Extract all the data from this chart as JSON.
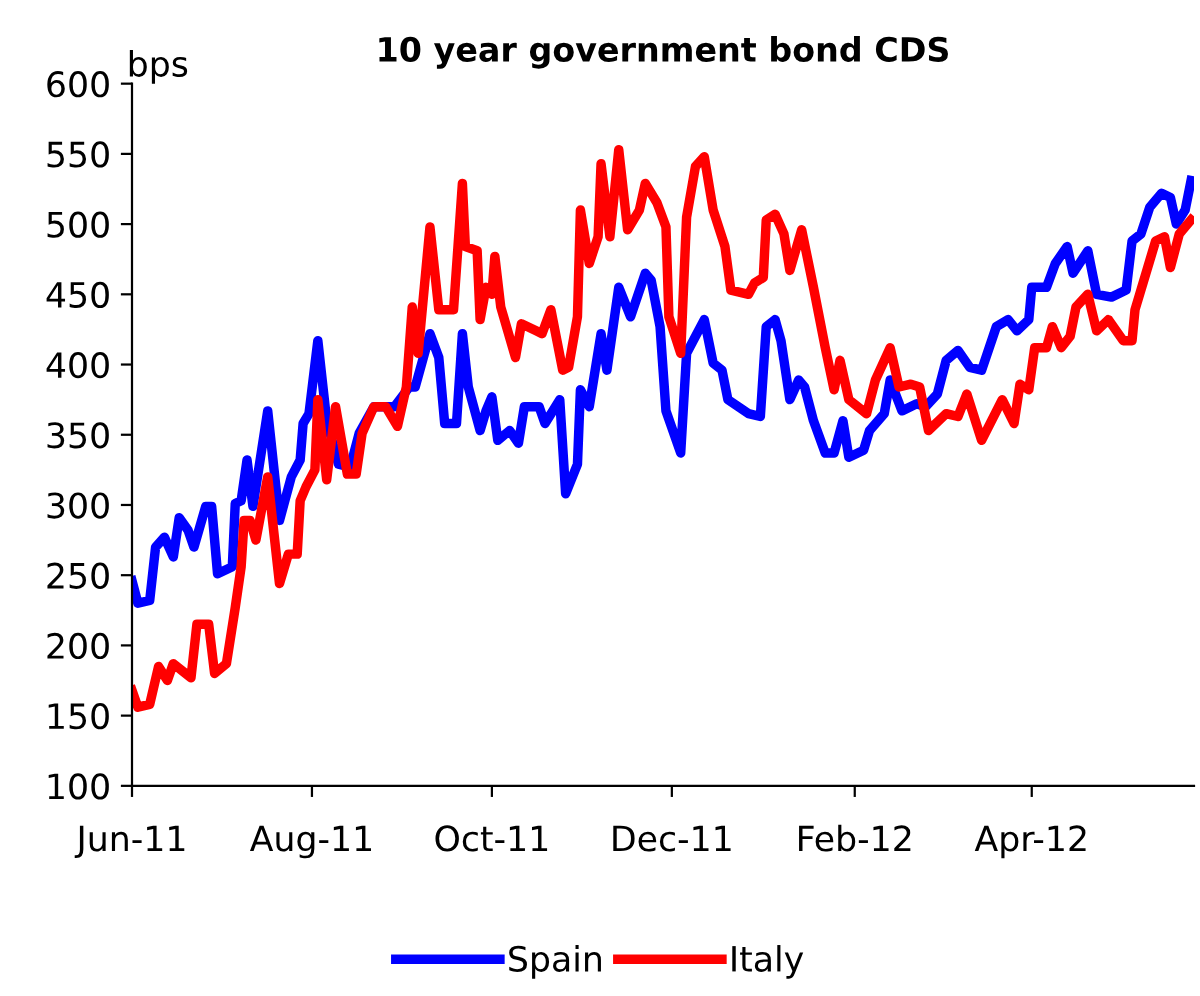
{
  "chart_data": {
    "type": "line",
    "title": "10 year government bond CDS",
    "ylabel": "bps",
    "xlim": [
      "2011-06-01",
      "2012-05-26"
    ],
    "xticks": [
      {
        "value": "2011-06-01",
        "label": "Jun-11"
      },
      {
        "value": "2011-08-01",
        "label": "Aug-11"
      },
      {
        "value": "2011-10-01",
        "label": "Oct-11"
      },
      {
        "value": "2011-12-01",
        "label": "Dec-11"
      },
      {
        "value": "2012-02-01",
        "label": "Feb-12"
      },
      {
        "value": "2012-04-01",
        "label": "Apr-12"
      }
    ],
    "ylim": [
      100,
      600
    ],
    "yticks": [
      100,
      150,
      200,
      250,
      300,
      350,
      400,
      450,
      500,
      550,
      600
    ],
    "grid": false,
    "legend": "bottom",
    "marker": "none",
    "line_style": "solid",
    "series": [
      {
        "name": "Spain",
        "color": "#0000ff",
        "x": [
          "2011-06-01",
          "2011-06-03",
          "2011-06-07",
          "2011-06-09",
          "2011-06-12",
          "2011-06-15",
          "2011-06-17",
          "2011-06-20",
          "2011-06-22",
          "2011-06-26",
          "2011-06-28",
          "2011-06-30",
          "2011-07-05",
          "2011-07-06",
          "2011-07-08",
          "2011-07-10",
          "2011-07-12",
          "2011-07-17",
          "2011-07-21",
          "2011-07-25",
          "2011-07-28",
          "2011-07-29",
          "2011-07-31",
          "2011-08-03",
          "2011-08-06",
          "2011-08-10",
          "2011-08-14",
          "2011-08-17",
          "2011-08-22",
          "2011-08-29",
          "2011-09-03",
          "2011-09-05",
          "2011-09-10",
          "2011-09-13",
          "2011-09-15",
          "2011-09-19",
          "2011-09-21",
          "2011-09-23",
          "2011-09-27",
          "2011-09-29",
          "2011-10-01",
          "2011-10-03",
          "2011-10-07",
          "2011-10-10",
          "2011-10-12",
          "2011-10-17",
          "2011-10-19",
          "2011-10-24",
          "2011-10-26",
          "2011-10-30",
          "2011-10-31",
          "2011-11-03",
          "2011-11-07",
          "2011-11-09",
          "2011-11-13",
          "2011-11-17",
          "2011-11-22",
          "2011-11-24",
          "2011-11-27",
          "2011-11-29",
          "2011-12-04",
          "2011-12-06",
          "2011-12-12",
          "2011-12-15",
          "2011-12-18",
          "2011-12-20",
          "2011-12-27",
          "2011-12-31",
          "2012-01-02",
          "2012-01-05",
          "2012-01-07",
          "2012-01-10",
          "2012-01-13",
          "2012-01-15",
          "2012-01-18",
          "2012-01-22",
          "2012-01-25",
          "2012-01-28",
          "2012-01-30",
          "2012-02-04",
          "2012-02-06",
          "2012-02-11",
          "2012-02-13",
          "2012-02-17",
          "2012-02-22",
          "2012-02-25",
          "2012-02-29",
          "2012-03-03",
          "2012-03-07",
          "2012-03-11",
          "2012-03-15",
          "2012-03-20",
          "2012-03-24",
          "2012-03-27",
          "2012-03-31",
          "2012-04-01",
          "2012-04-06",
          "2012-04-09",
          "2012-04-13",
          "2012-04-15",
          "2012-04-20",
          "2012-04-23",
          "2012-04-28",
          "2012-05-03",
          "2012-05-05",
          "2012-05-08",
          "2012-05-11",
          "2012-05-15",
          "2012-05-18",
          "2012-05-20",
          "2012-05-23",
          "2012-05-25"
        ],
        "values": [
          246,
          230,
          232,
          270,
          277,
          263,
          291,
          282,
          270,
          299,
          299,
          251,
          256,
          301,
          303,
          332,
          299,
          367,
          289,
          320,
          332,
          358,
          365,
          417,
          360,
          329,
          327,
          351,
          370,
          370,
          384,
          384,
          422,
          405,
          358,
          358,
          422,
          384,
          353,
          367,
          377,
          346,
          353,
          344,
          370,
          370,
          358,
          375,
          308,
          329,
          382,
          370,
          422,
          396,
          455,
          434,
          465,
          460,
          427,
          367,
          337,
          408,
          432,
          401,
          396,
          375,
          365,
          363,
          427,
          432,
          417,
          375,
          389,
          384,
          360,
          337,
          337,
          360,
          334,
          339,
          353,
          365,
          389,
          367,
          372,
          370,
          379,
          403,
          410,
          398,
          396,
          427,
          432,
          424,
          432,
          455,
          455,
          472,
          484,
          465,
          481,
          450,
          448,
          453,
          488,
          493,
          512,
          522,
          519,
          500,
          510,
          531
        ]
      },
      {
        "name": "Italy",
        "color": "#ff0000",
        "x": [
          "2011-06-01",
          "2011-06-03",
          "2011-06-07",
          "2011-06-10",
          "2011-06-13",
          "2011-06-15",
          "2011-06-18",
          "2011-06-21",
          "2011-06-23",
          "2011-06-27",
          "2011-06-29",
          "2011-07-03",
          "2011-07-06",
          "2011-07-08",
          "2011-07-09",
          "2011-07-11",
          "2011-07-13",
          "2011-07-17",
          "2011-07-21",
          "2011-07-24",
          "2011-07-27",
          "2011-07-28",
          "2011-07-30",
          "2011-08-02",
          "2011-08-03",
          "2011-08-06",
          "2011-08-09",
          "2011-08-13",
          "2011-08-16",
          "2011-08-18",
          "2011-08-22",
          "2011-08-26",
          "2011-08-30",
          "2011-09-02",
          "2011-09-04",
          "2011-09-06",
          "2011-09-10",
          "2011-09-13",
          "2011-09-18",
          "2011-09-21",
          "2011-09-22",
          "2011-09-26",
          "2011-09-27",
          "2011-09-29",
          "2011-10-01",
          "2011-10-02",
          "2011-10-04",
          "2011-10-09",
          "2011-10-11",
          "2011-10-16",
          "2011-10-18",
          "2011-10-21",
          "2011-10-25",
          "2011-10-27",
          "2011-10-30",
          "2011-10-31",
          "2011-11-03",
          "2011-11-06",
          "2011-11-07",
          "2011-11-10",
          "2011-11-13",
          "2011-11-16",
          "2011-11-20",
          "2011-11-22",
          "2011-11-26",
          "2011-11-29",
          "2011-11-30",
          "2011-12-04",
          "2011-12-06",
          "2011-12-09",
          "2011-12-12",
          "2011-12-15",
          "2011-12-19",
          "2011-12-21",
          "2011-12-27",
          "2011-12-29",
          "2012-01-01",
          "2012-01-02",
          "2012-01-05",
          "2012-01-08",
          "2012-01-10",
          "2012-01-14",
          "2012-01-18",
          "2012-01-22",
          "2012-01-25",
          "2012-01-27",
          "2012-01-30",
          "2012-02-05",
          "2012-02-08",
          "2012-02-13",
          "2012-02-16",
          "2012-02-20",
          "2012-02-23",
          "2012-02-26",
          "2012-03-03",
          "2012-03-07",
          "2012-03-10",
          "2012-03-15",
          "2012-03-22",
          "2012-03-26",
          "2012-03-28",
          "2012-03-31",
          "2012-04-02",
          "2012-04-06",
          "2012-04-08",
          "2012-04-11",
          "2012-04-14",
          "2012-04-16",
          "2012-04-20",
          "2012-04-23",
          "2012-04-27",
          "2012-05-02",
          "2012-05-05",
          "2012-05-06",
          "2012-05-11",
          "2012-05-13",
          "2012-05-16",
          "2012-05-18",
          "2012-05-21",
          "2012-05-25"
        ],
        "values": [
          168,
          156,
          158,
          185,
          175,
          187,
          182,
          177,
          215,
          215,
          180,
          187,
          227,
          256,
          289,
          289,
          275,
          320,
          244,
          265,
          265,
          303,
          313,
          325,
          375,
          318,
          370,
          322,
          322,
          351,
          370,
          370,
          356,
          384,
          441,
          408,
          498,
          439,
          439,
          529,
          484,
          481,
          432,
          455,
          450,
          477,
          441,
          405,
          429,
          424,
          422,
          439,
          396,
          398,
          434,
          510,
          472,
          491,
          543,
          491,
          553,
          496,
          510,
          529,
          515,
          498,
          434,
          408,
          505,
          541,
          548,
          510,
          484,
          453,
          450,
          458,
          462,
          503,
          507,
          493,
          467,
          496,
          455,
          412,
          382,
          403,
          375,
          365,
          389,
          412,
          384,
          386,
          384,
          353,
          365,
          363,
          379,
          346,
          375,
          358,
          386,
          382,
          412,
          412,
          427,
          412,
          420,
          441,
          450,
          424,
          432,
          417,
          417,
          439,
          474,
          488,
          491,
          469,
          493,
          503
        ]
      }
    ]
  }
}
